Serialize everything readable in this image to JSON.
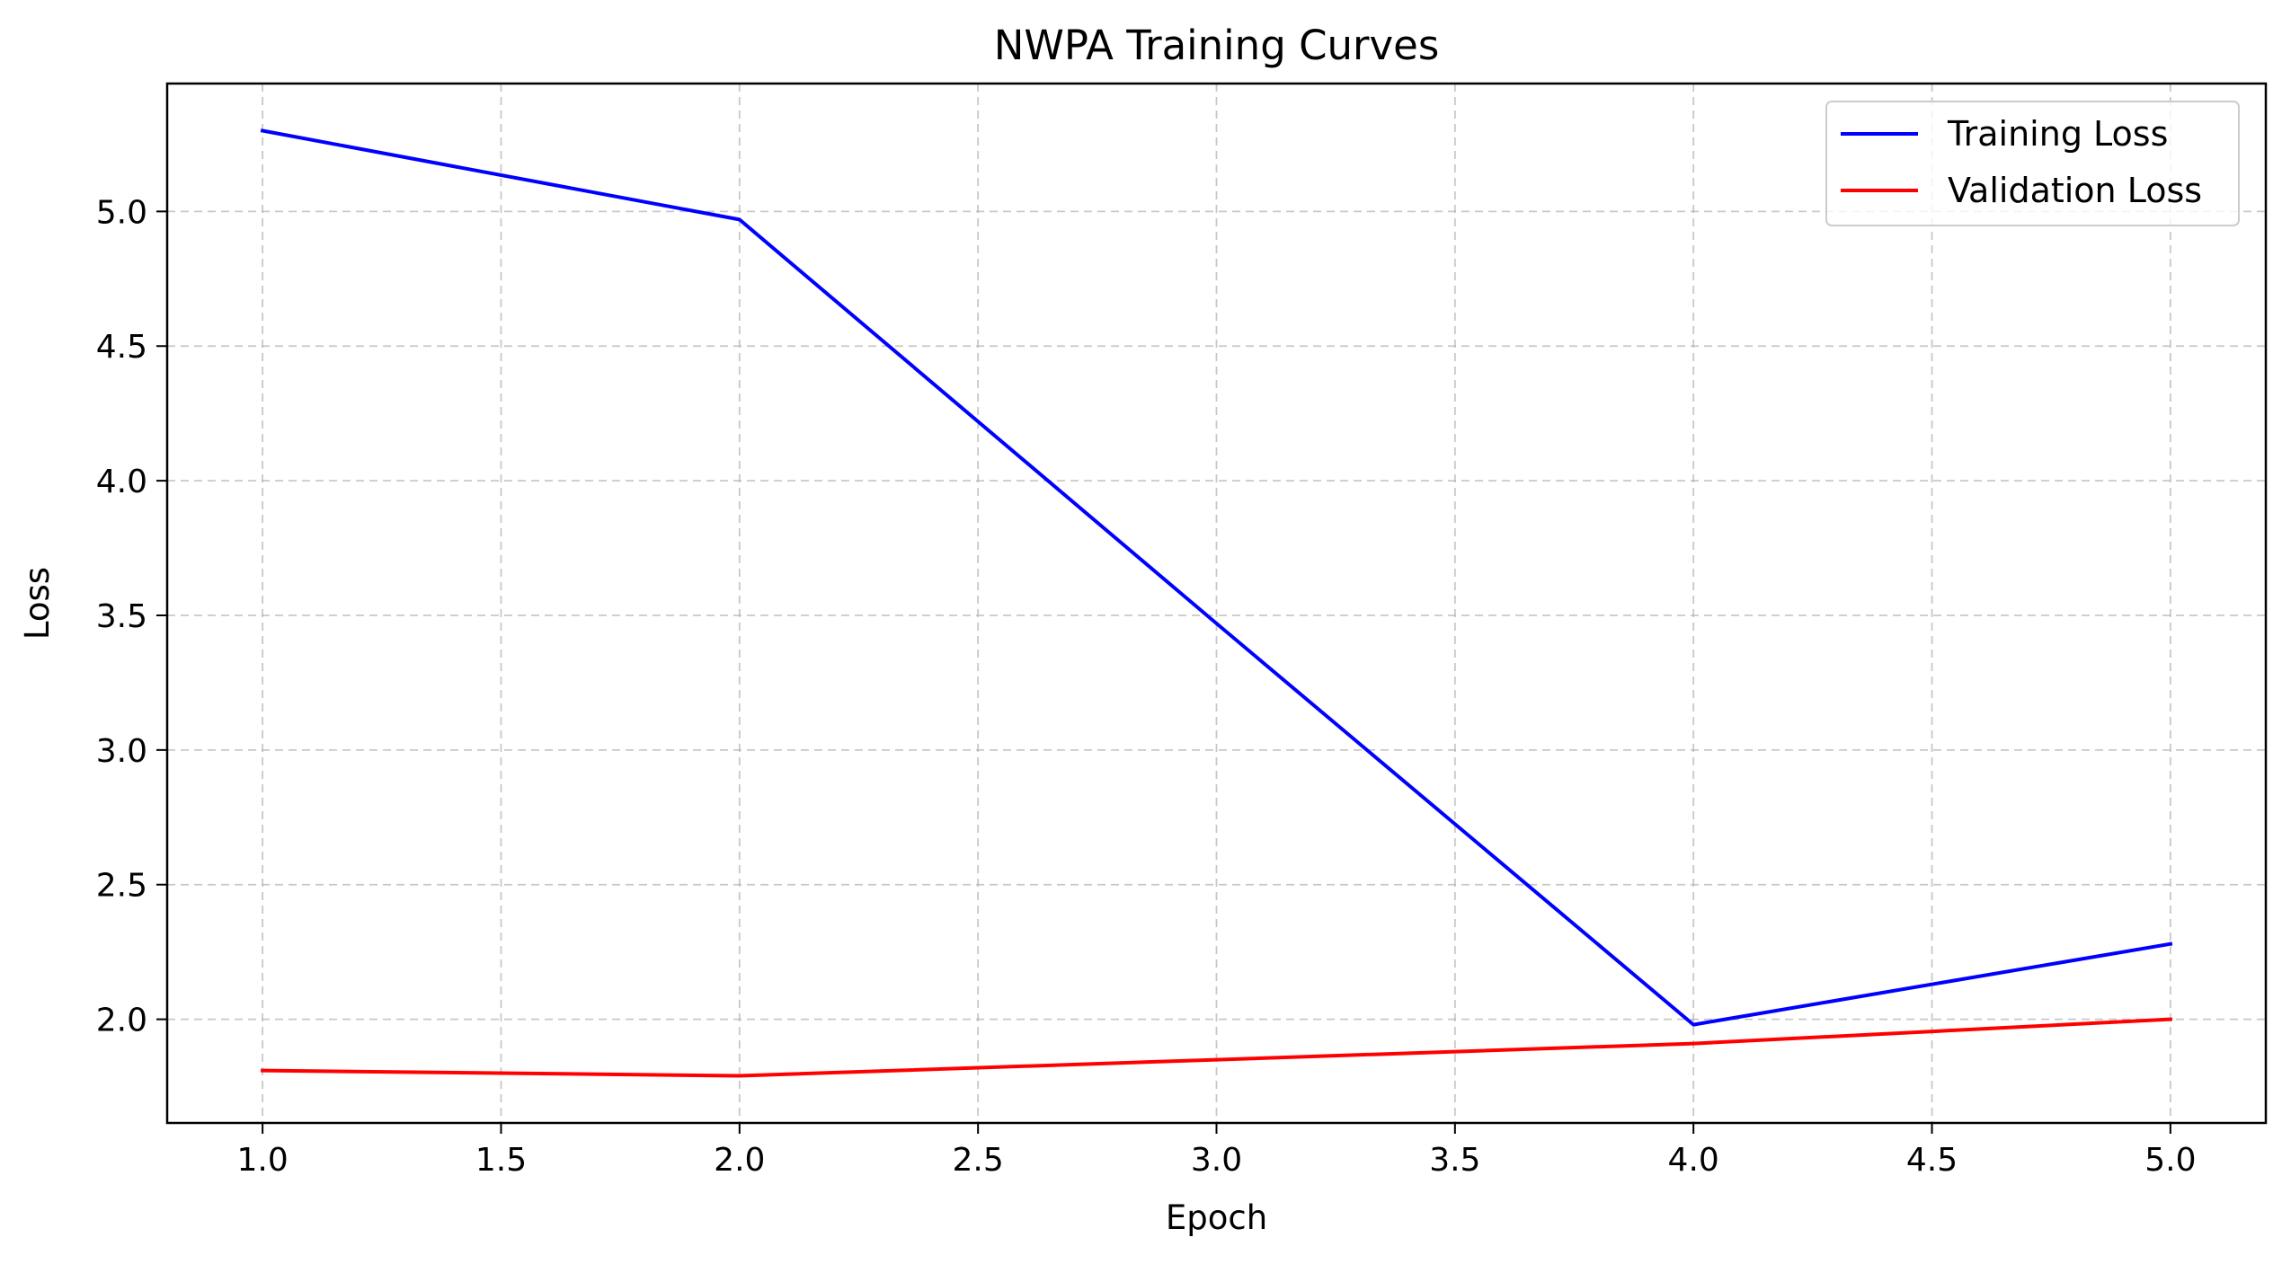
{
  "chart_data": {
    "type": "line",
    "title": "NWPA Training Curves",
    "xlabel": "Epoch",
    "ylabel": "Loss",
    "x": [
      1.0,
      2.0,
      3.0,
      4.0,
      5.0
    ],
    "series": [
      {
        "name": "Training Loss",
        "color": "#0000ff",
        "values": [
          5.3,
          4.97,
          3.47,
          1.98,
          2.28
        ]
      },
      {
        "name": "Validation Loss",
        "color": "#ff0000",
        "values": [
          1.81,
          1.79,
          1.85,
          1.91,
          2.0
        ]
      }
    ],
    "xlim": [
      0.8,
      5.2
    ],
    "ylim": [
      1.615,
      5.475
    ],
    "xticks": [
      "1.0",
      "1.5",
      "2.0",
      "2.5",
      "3.0",
      "3.5",
      "4.0",
      "4.5",
      "5.0"
    ],
    "yticks": [
      "2.0",
      "2.5",
      "3.0",
      "3.5",
      "4.0",
      "4.5",
      "5.0"
    ],
    "grid": true,
    "legend_position": "top-right"
  }
}
